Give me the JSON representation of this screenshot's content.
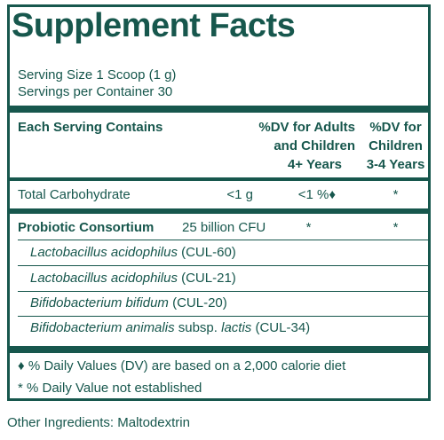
{
  "title": "Supplement Facts",
  "serving_size": "Serving Size 1 Scoop (1 g)",
  "servings_per_container": "Servings per Container 30",
  "header": {
    "each_serving": "Each Serving Contains",
    "dv_adults_line1": "%DV for Adults",
    "dv_adults_line2": "and Children",
    "dv_adults_line3": "4+ Years",
    "dv_children_line1": "%DV for",
    "dv_children_line2": "Children",
    "dv_children_line3": "3-4 Years"
  },
  "rows": [
    {
      "name": "Total Carbohydrate",
      "amount": "<1 g",
      "dv_adults": "<1 %♦",
      "dv_children": "*"
    },
    {
      "name": "Probiotic Consortium",
      "amount": "25 billion CFU",
      "dv_adults": "*",
      "dv_children": "*"
    }
  ],
  "strains": [
    {
      "species": "Lactobacillus acidophilus",
      "strain": "(CUL-60)"
    },
    {
      "species": "Lactobacillus acidophilus",
      "strain": "(CUL-21)"
    },
    {
      "species": "Bifidobacterium bifidum",
      "strain": "(CUL-20)"
    },
    {
      "species": "Bifidobacterium animalis",
      "subsp": "subsp.",
      "variety": "lactis",
      "strain": "(CUL-34)"
    }
  ],
  "footnotes": {
    "dv": "♦ % Daily Values (DV) are based on a 2,000 calorie diet",
    "not_established": "* % Daily Value not established"
  },
  "other_ingredients": "Other Ingredients: Maltodextrin",
  "colors": {
    "text": "#17574d",
    "background": "#ffffff"
  }
}
